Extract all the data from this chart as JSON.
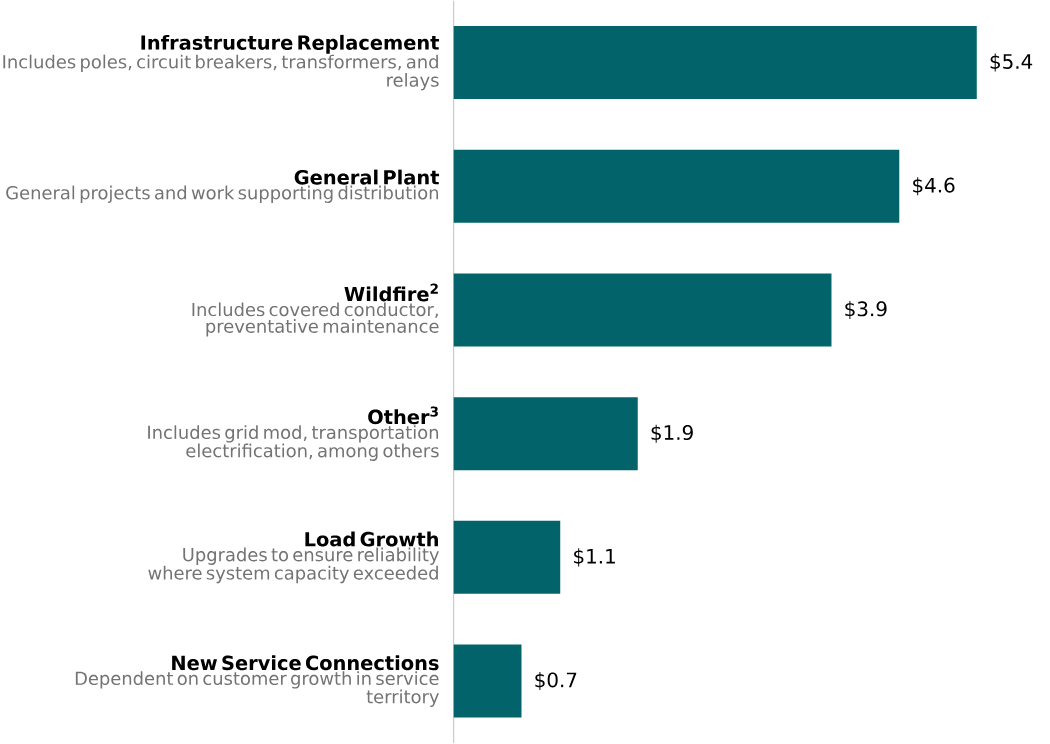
{
  "chart_data": {
    "type": "bar",
    "orientation": "horizontal",
    "color": "#02646a",
    "categories": [
      "Infrastructure Replacement",
      "General Plant",
      "Wildfire$^{2}$",
      "Other$^{3}$",
      "Load Growth",
      "New Service Connections"
    ],
    "annotations": [
      "Includes poles, circuit breakers, transformers, and relays",
      "General projects and work supporting distribution",
      "Includes covered conductor, preventative maintenance",
      "Includes grid mod, transportation electrification, among others",
      "Upgrades to ensure reliability where system capacity exceeded",
      "Dependent on customer growth in service territory"
    ],
    "values": [
      5.4,
      4.6,
      3.9,
      1.9,
      1.1,
      0.7
    ],
    "value_labels": [
      "$5.4",
      "$4.6",
      "$3.9",
      "$1.9",
      "$1.1",
      "$0.7"
    ],
    "relative": false
  }
}
